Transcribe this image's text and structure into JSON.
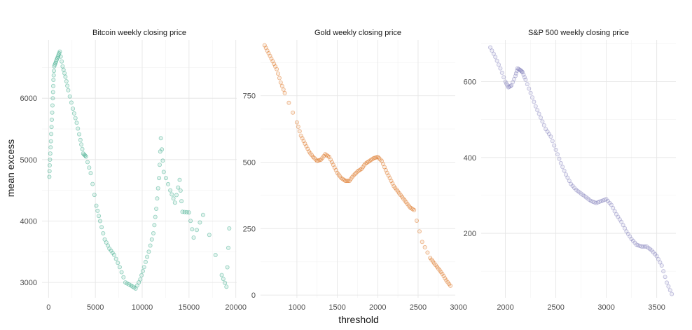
{
  "figure": {
    "xlabel": "threshold",
    "ylabel": "mean  excess",
    "palette": [
      "#1b9e77",
      "#d95f02",
      "#7570b3"
    ]
  },
  "chart_data": [
    {
      "type": "scatter",
      "title": "Bitcoin  weekly  closing price",
      "color": "#1b9e77",
      "xlim": [
        -700,
        20100
      ],
      "ylim": [
        2750,
        6950
      ],
      "xticks": [
        0,
        5000,
        10000,
        15000,
        20000
      ],
      "xtick_labels": [
        "0",
        "5000",
        "10000",
        "15000",
        "20000"
      ],
      "yticks": [
        3000,
        4000,
        5000,
        6000
      ],
      "ytick_labels": [
        "3000",
        "4000",
        "5000",
        "6000"
      ],
      "key_points": [
        [
          80,
          4720
        ],
        [
          150,
          5000
        ],
        [
          250,
          5300
        ],
        [
          350,
          5650
        ],
        [
          450,
          6000
        ],
        [
          520,
          6300
        ],
        [
          600,
          6520
        ],
        [
          800,
          6600
        ],
        [
          1000,
          6680
        ],
        [
          1200,
          6760
        ],
        [
          1500,
          6520
        ],
        [
          1800,
          6350
        ],
        [
          2100,
          6130
        ],
        [
          2600,
          5830
        ],
        [
          3000,
          5600
        ],
        [
          3400,
          5320
        ],
        [
          3700,
          5100
        ],
        [
          4000,
          5050
        ],
        [
          4500,
          4780
        ],
        [
          5100,
          4250
        ],
        [
          5500,
          4000
        ],
        [
          6000,
          3700
        ],
        [
          6500,
          3550
        ],
        [
          7000,
          3450
        ],
        [
          7600,
          3250
        ],
        [
          8200,
          3000
        ],
        [
          8800,
          2950
        ],
        [
          9300,
          2900
        ],
        [
          9800,
          3050
        ],
        [
          10200,
          3250
        ],
        [
          10700,
          3500
        ],
        [
          11200,
          3800
        ],
        [
          11500,
          4200
        ],
        [
          11800,
          4700
        ],
        [
          12000,
          5350
        ],
        [
          12300,
          4800
        ],
        [
          13000,
          4500
        ],
        [
          13500,
          4300
        ],
        [
          14000,
          4670
        ],
        [
          14300,
          4150
        ],
        [
          15000,
          4140
        ],
        [
          15500,
          3730
        ],
        [
          16500,
          4100
        ],
        [
          18500,
          3120
        ],
        [
          19000,
          2930
        ],
        [
          19300,
          3880
        ]
      ]
    },
    {
      "type": "scatter",
      "title": "Gold  weekly  closing price",
      "color": "#d95f02",
      "xlim": [
        550,
        2960
      ],
      "ylim": [
        -10,
        960
      ],
      "xticks": [
        1000,
        1500,
        2000,
        2500,
        3000
      ],
      "xtick_labels": [
        "1000",
        "1500",
        "2000",
        "2500",
        "3000"
      ],
      "yticks": [
        0,
        250,
        500,
        750
      ],
      "ytick_labels": [
        "0",
        "250",
        "500",
        "750"
      ],
      "key_points": [
        [
          600,
          940
        ],
        [
          650,
          910
        ],
        [
          700,
          880
        ],
        [
          750,
          850
        ],
        [
          800,
          800
        ],
        [
          850,
          760
        ],
        [
          1000,
          650
        ],
        [
          1050,
          600
        ],
        [
          1100,
          570
        ],
        [
          1150,
          540
        ],
        [
          1200,
          520
        ],
        [
          1250,
          505
        ],
        [
          1300,
          510
        ],
        [
          1350,
          530
        ],
        [
          1400,
          520
        ],
        [
          1450,
          490
        ],
        [
          1500,
          460
        ],
        [
          1550,
          440
        ],
        [
          1600,
          430
        ],
        [
          1650,
          430
        ],
        [
          1700,
          450
        ],
        [
          1750,
          465
        ],
        [
          1800,
          475
        ],
        [
          1850,
          495
        ],
        [
          1900,
          505
        ],
        [
          1950,
          515
        ],
        [
          2000,
          520
        ],
        [
          2050,
          505
        ],
        [
          2100,
          470
        ],
        [
          2150,
          440
        ],
        [
          2200,
          410
        ],
        [
          2250,
          390
        ],
        [
          2300,
          370
        ],
        [
          2350,
          350
        ],
        [
          2400,
          330
        ],
        [
          2450,
          320
        ],
        [
          2550,
          200
        ],
        [
          2650,
          140
        ],
        [
          2700,
          120
        ],
        [
          2750,
          100
        ],
        [
          2800,
          80
        ],
        [
          2850,
          55
        ],
        [
          2900,
          35
        ]
      ]
    },
    {
      "type": "scatter",
      "title": "S&P 500  weekly  closing price",
      "color": "#7570b3",
      "xlim": [
        1760,
        3690
      ],
      "ylim": [
        30,
        710
      ],
      "xticks": [
        2000,
        2500,
        3000,
        3500
      ],
      "xtick_labels": [
        "2000",
        "2500",
        "3000",
        "3500"
      ],
      "yticks": [
        200,
        400,
        600
      ],
      "ytick_labels": [
        "200",
        "400",
        "600"
      ],
      "key_points": [
        [
          1850,
          690
        ],
        [
          1900,
          665
        ],
        [
          1950,
          635
        ],
        [
          2000,
          600
        ],
        [
          2030,
          585
        ],
        [
          2060,
          590
        ],
        [
          2100,
          615
        ],
        [
          2120,
          635
        ],
        [
          2150,
          630
        ],
        [
          2170,
          625
        ],
        [
          2200,
          605
        ],
        [
          2250,
          570
        ],
        [
          2300,
          535
        ],
        [
          2350,
          505
        ],
        [
          2400,
          475
        ],
        [
          2450,
          455
        ],
        [
          2500,
          420
        ],
        [
          2550,
          385
        ],
        [
          2600,
          355
        ],
        [
          2650,
          330
        ],
        [
          2700,
          315
        ],
        [
          2750,
          305
        ],
        [
          2800,
          295
        ],
        [
          2850,
          285
        ],
        [
          2900,
          280
        ],
        [
          2950,
          285
        ],
        [
          3000,
          290
        ],
        [
          3050,
          275
        ],
        [
          3100,
          250
        ],
        [
          3150,
          230
        ],
        [
          3200,
          205
        ],
        [
          3250,
          185
        ],
        [
          3300,
          170
        ],
        [
          3350,
          165
        ],
        [
          3400,
          165
        ],
        [
          3450,
          155
        ],
        [
          3500,
          140
        ],
        [
          3550,
          115
        ],
        [
          3600,
          70
        ],
        [
          3650,
          40
        ]
      ]
    }
  ]
}
